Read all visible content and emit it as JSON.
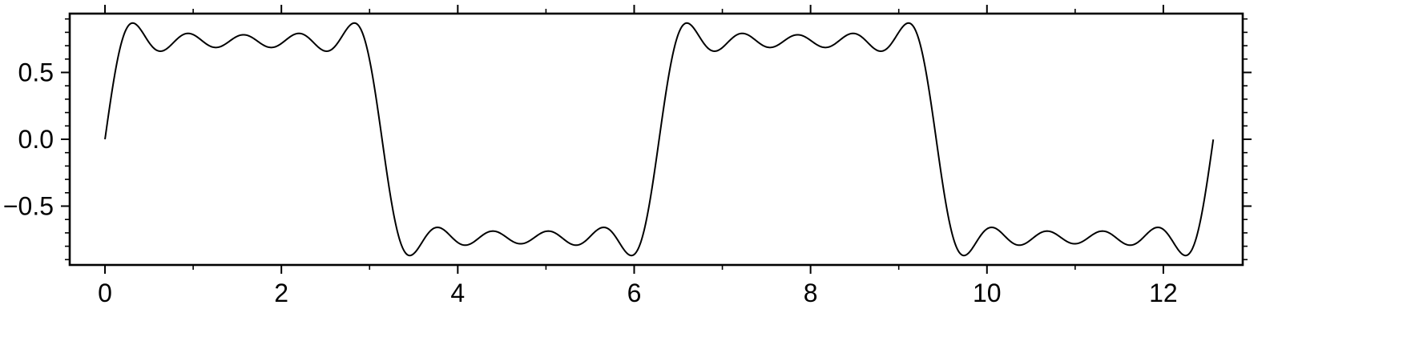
{
  "chart_data": {
    "type": "line",
    "title": "",
    "xlabel": "",
    "ylabel": "",
    "xlim": [
      -0.4,
      12.9
    ],
    "ylim": [
      -0.94,
      0.94
    ],
    "grid": false,
    "x_ticks": [
      0,
      2,
      4,
      6,
      8,
      10,
      12
    ],
    "x_tick_labels": [
      "0",
      "2",
      "4",
      "6",
      "8",
      "10",
      "12"
    ],
    "x_minor_step": 1,
    "y_ticks": [
      -0.5,
      0,
      0.5
    ],
    "y_tick_labels": [
      "−0.5",
      "0.0",
      "0.5"
    ],
    "y_minor_step": 0.1,
    "series": [
      {
        "x_start": 0,
        "x_end": 12.566,
        "formula": "(4/π)·Σ_{k=1,3,5,7,9} sin(kx)/k",
        "harmonics": [
          1,
          3,
          5,
          7,
          9
        ],
        "color": "#000000"
      }
    ]
  }
}
